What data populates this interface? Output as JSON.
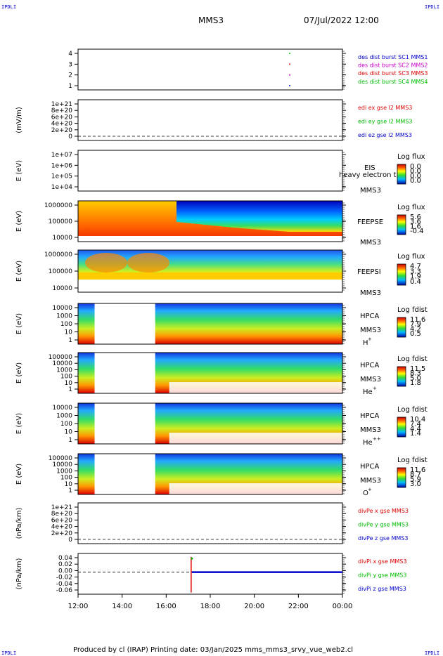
{
  "header": {
    "corner_left_top": "IPDLI",
    "corner_right_top": "IPDLI",
    "corner_left_bottom": "IPDLI",
    "corner_right_bottom": "IPDLI",
    "mission": "MMS3",
    "datetime": "07/Jul/2022 12:00"
  },
  "footer": {
    "text": "Produced by cl (IRAP)   Printing date: 03/Jan/2025   mms_mms3_srvy_vue_web2.cl"
  },
  "colors": {
    "mms1": "#0000cc",
    "mms2": "#cc00cc",
    "mms3": "#dd0000",
    "mms4": "#00bb00",
    "x": "#dd0000",
    "y": "#00bb00",
    "z": "#0000cc"
  },
  "chart_data": [
    {
      "type": "scatter",
      "id": "burst",
      "ylabel": "",
      "yticks": [
        "4",
        "3",
        "2",
        "1"
      ],
      "legend": [
        "des dist burst SC1 MMS1",
        "des dist burst SC2 MMS2",
        "des dist burst SC3 MMS3",
        "des dist burst SC4 MMS4"
      ],
      "series": [
        {
          "name": "des dist burst SC1 MMS1",
          "x": [
            "21:35"
          ],
          "y": [
            1
          ]
        },
        {
          "name": "des dist burst SC2 MMS2",
          "x": [
            "21:35"
          ],
          "y": [
            2
          ]
        },
        {
          "name": "des dist burst SC3 MMS3",
          "x": [
            "21:35"
          ],
          "y": [
            3
          ]
        },
        {
          "name": "des dist burst SC4 MMS4",
          "x": [
            "21:35"
          ],
          "y": [
            4
          ]
        }
      ]
    },
    {
      "type": "line",
      "id": "edi",
      "ylabel": "(mV/m)",
      "yticks": [
        "1e+21",
        "8e+20",
        "6e+20",
        "4e+20",
        "2e+20",
        "0"
      ],
      "legend": [
        "edi ex gse l2 MMS3",
        "edi ey gse l2 MMS3",
        "edi ez gse l2 MMS3"
      ],
      "series": []
    },
    {
      "type": "heatmap",
      "id": "eis",
      "ylabel": "E (eV)",
      "yticks": [
        "1e+07",
        "1e+06",
        "1e+05",
        "1e+04"
      ],
      "instrument": "EIS",
      "spacecraft": "MMS3",
      "overlap_text": "heavy electron t",
      "cbar_title": "Log flux",
      "cbar_ticks": [
        "0.0",
        "0.0",
        "0.0",
        "0.0"
      ]
    },
    {
      "type": "heatmap",
      "id": "feepse",
      "ylabel": "E (eV)",
      "yticks": [
        "1000000",
        "100000",
        "10000"
      ],
      "instrument": "FEEPSE",
      "spacecraft": "MMS3",
      "cbar_title": "Log flux",
      "cbar_ticks": [
        "5.6",
        "3.6",
        "1.6",
        "-0.4"
      ]
    },
    {
      "type": "heatmap",
      "id": "feepsi",
      "ylabel": "E (eV)",
      "yticks": [
        "1000000",
        "100000",
        "10000"
      ],
      "instrument": "FEEPSI",
      "spacecraft": "MMS3",
      "cbar_title": "Log flux",
      "cbar_ticks": [
        "4.7",
        "3.3",
        "1.9",
        "0.4"
      ]
    },
    {
      "type": "heatmap",
      "id": "hpca_h",
      "ylabel": "E (eV)",
      "yticks": [
        "10000",
        "1000",
        "100",
        "10",
        "1"
      ],
      "instrument": "HPCA",
      "spacecraft": "MMS3",
      "species": "H",
      "species_sup": "+",
      "cbar_title": "Log fdist",
      "cbar_ticks": [
        "11.6",
        "7.9",
        "4.2",
        "0.5"
      ]
    },
    {
      "type": "heatmap",
      "id": "hpca_he",
      "ylabel": "E (eV)",
      "yticks": [
        "100000",
        "10000",
        "1000",
        "100",
        "10",
        "1"
      ],
      "instrument": "HPCA",
      "spacecraft": "MMS3",
      "species": "He",
      "species_sup": "+",
      "cbar_title": "Log fdist",
      "cbar_ticks": [
        "11.5",
        "8.3",
        "5.0",
        "1.8"
      ]
    },
    {
      "type": "heatmap",
      "id": "hpca_hepp",
      "ylabel": "E (eV)",
      "yticks": [
        "10000",
        "1000",
        "100",
        "10",
        "1"
      ],
      "instrument": "HPCA",
      "spacecraft": "MMS3",
      "species": "He",
      "species_sup": "++",
      "cbar_title": "Log fdist",
      "cbar_ticks": [
        "10.4",
        "7.4",
        "4.4",
        "1.4"
      ]
    },
    {
      "type": "heatmap",
      "id": "hpca_o",
      "ylabel": "E (eV)",
      "yticks": [
        "100000",
        "10000",
        "1000",
        "100",
        "10",
        "1"
      ],
      "instrument": "HPCA",
      "spacecraft": "MMS3",
      "species": "O",
      "species_sup": "+",
      "cbar_title": "Log fdist",
      "cbar_ticks": [
        "11.6",
        "8.7",
        "5.9",
        "3.0"
      ]
    },
    {
      "type": "line",
      "id": "divpe",
      "ylabel": "(nPa/km)",
      "yticks": [
        "1e+21",
        "8e+20",
        "6e+20",
        "4e+20",
        "2e+20",
        "0"
      ],
      "legend": [
        "divPe x gse MMS3",
        "divPe y gse MMS3",
        "divPe z gse MMS3"
      ],
      "series": []
    },
    {
      "type": "line",
      "id": "divpi",
      "ylabel": "(nPa/km)",
      "yticks": [
        "0.04",
        "0.02",
        "0.00",
        "-0.02",
        "-0.04",
        "-0.06"
      ],
      "legend": [
        "divPi x gse MMS3",
        "divPi y gse MMS3",
        "divPi z gse MMS3"
      ],
      "ylim": [
        -0.065,
        0.055
      ],
      "series": [
        {
          "name": "divPi x gse MMS3",
          "x": [
            "17:08",
            "17:08"
          ],
          "y": [
            -0.06,
            0.045
          ]
        },
        {
          "name": "divPi y gse MMS3",
          "x": [
            "17:10"
          ],
          "y": [
            0.04
          ]
        },
        {
          "name": "divPi z gse MMS3",
          "x": [
            "17:10",
            "00:00"
          ],
          "y": [
            0.0,
            0.0
          ]
        }
      ]
    }
  ],
  "xaxis": {
    "ticks": [
      "12:00",
      "14:00",
      "16:00",
      "18:00",
      "20:00",
      "22:00",
      "00:00"
    ]
  }
}
